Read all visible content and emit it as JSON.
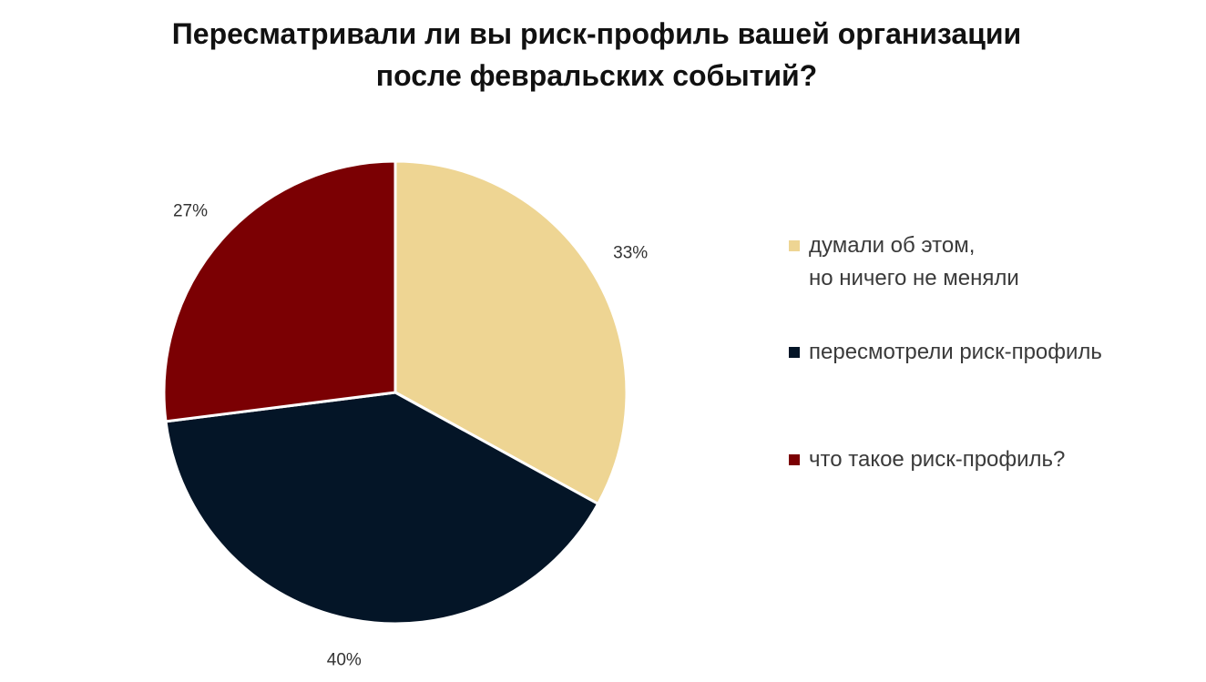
{
  "title": {
    "line1": "Пересматривали ли вы риск-профиль вашей организации",
    "line2": "после февральских событий?"
  },
  "colors": {
    "thought_no_change": "#EED593",
    "reviewed": "#041527",
    "what_is": "#7B0003",
    "slice_border": "#ffffff",
    "label_text": "#333333"
  },
  "chart_data": {
    "type": "pie",
    "title": "Пересматривали ли вы риск-профиль вашей организации после февральских событий?",
    "slices": [
      {
        "label": "думали об этом, но ничего не меняли",
        "value": 33,
        "display": "33%",
        "color": "#EED593"
      },
      {
        "label": "пересмотрели риск-профиль",
        "value": 40,
        "display": "40%",
        "color": "#041527"
      },
      {
        "label": "что такое риск-профиль?",
        "value": 27,
        "display": "27%",
        "color": "#7B0003"
      }
    ],
    "start": "12 o'clock",
    "direction": "clockwise",
    "legend_position": "right"
  },
  "legend": [
    {
      "line1": "думали об этом,",
      "line2": "но ничего не меняли"
    },
    {
      "line1": "пересмотрели риск-профиль",
      "line2": ""
    },
    {
      "line1": "что такое риск-профиль?",
      "line2": ""
    }
  ]
}
